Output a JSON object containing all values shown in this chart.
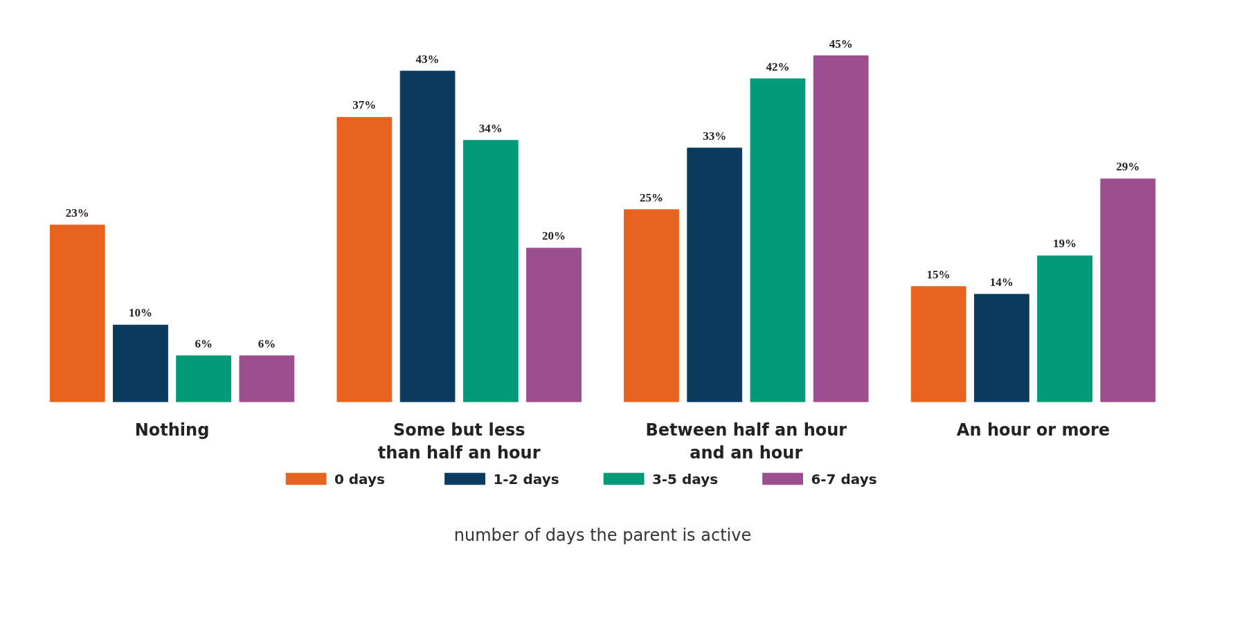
{
  "chart_data": {
    "type": "bar",
    "xlabel": "number of days the parent is active",
    "categories": [
      "Nothing",
      "Some but less\nthan half an hour",
      "Between half an hour\nand an hour",
      "An hour or more"
    ],
    "series": [
      {
        "name": "0 days",
        "color": "#e8631f",
        "values": [
          23,
          37,
          25,
          15
        ],
        "value_labels": [
          "23%",
          "37%",
          "25%",
          "15%"
        ]
      },
      {
        "name": "1-2 days",
        "color": "#0b3b5e",
        "values": [
          10,
          43,
          33,
          14
        ],
        "value_labels": [
          "10%",
          "43%",
          "33%",
          "14%"
        ]
      },
      {
        "name": "3-5 days",
        "color": "#009a78",
        "values": [
          6,
          34,
          42,
          19
        ],
        "value_labels": [
          "6%",
          "34%",
          "42%",
          "19%"
        ]
      },
      {
        "name": "6-7 days",
        "color": "#9b4f8f",
        "values": [
          6,
          20,
          45,
          29
        ],
        "value_labels": [
          "6%",
          "20%",
          "45%",
          "29%"
        ]
      }
    ],
    "grid": false,
    "legend": "bottom"
  }
}
